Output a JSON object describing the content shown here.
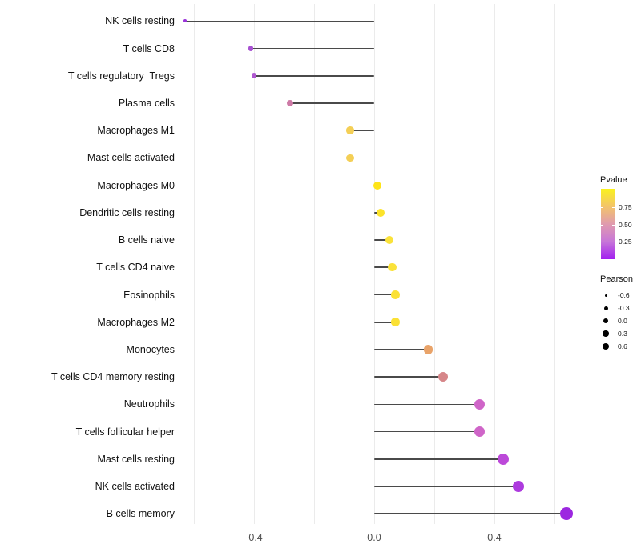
{
  "chart_data": {
    "type": "lollipop",
    "title": "",
    "xlabel": "",
    "ylabel": "",
    "x_axis": {
      "range": [
        -0.65,
        0.66
      ],
      "grid_values": [
        -0.6,
        -0.4,
        -0.2,
        0.0,
        0.2,
        0.4,
        0.6
      ],
      "ticks": [
        {
          "label": "-0.4",
          "value": -0.4
        },
        {
          "label": "0.0",
          "value": 0.0
        },
        {
          "label": "0.4",
          "value": 0.4
        }
      ]
    },
    "rows": [
      {
        "label": "NK cells resting",
        "pearson": -0.63,
        "dot_color": "#9a33da",
        "radius": 2.0
      },
      {
        "label": "T cells CD8",
        "pearson": -0.41,
        "dot_color": "#a750d2",
        "radius": 3.2
      },
      {
        "label": "T cells regulatory  Tregs",
        "pearson": -0.4,
        "dot_color": "#af58d0",
        "radius": 3.3
      },
      {
        "label": "Plasma cells",
        "pearson": -0.28,
        "dot_color": "#cd7aa6",
        "radius": 4.1
      },
      {
        "label": "Macrophages M1",
        "pearson": -0.08,
        "dot_color": "#f4cf56",
        "radius": 4.7
      },
      {
        "label": "Mast cells activated",
        "pearson": -0.08,
        "dot_color": "#f4cf56",
        "radius": 4.7
      },
      {
        "label": "Macrophages M0",
        "pearson": 0.01,
        "dot_color": "#fee418",
        "radius": 5.0
      },
      {
        "label": "Dendritic cells resting",
        "pearson": 0.02,
        "dot_color": "#fce32a",
        "radius": 5.0
      },
      {
        "label": "B cells naive",
        "pearson": 0.05,
        "dot_color": "#fae23a",
        "radius": 5.2
      },
      {
        "label": "T cells CD4 naive",
        "pearson": 0.06,
        "dot_color": "#fae23a",
        "radius": 5.2
      },
      {
        "label": "Eosinophils",
        "pearson": 0.07,
        "dot_color": "#fbe135",
        "radius": 5.3
      },
      {
        "label": "Macrophages M2",
        "pearson": 0.07,
        "dot_color": "#fbe135",
        "radius": 5.3
      },
      {
        "label": "Monocytes",
        "pearson": 0.18,
        "dot_color": "#e9a369",
        "radius": 5.8
      },
      {
        "label": "T cells CD4 memory resting",
        "pearson": 0.23,
        "dot_color": "#d68689",
        "radius": 6.0
      },
      {
        "label": "Neutrophils",
        "pearson": 0.35,
        "dot_color": "#cf65c8",
        "radius": 6.6
      },
      {
        "label": "T cells follicular helper",
        "pearson": 0.35,
        "dot_color": "#cf65c8",
        "radius": 6.6
      },
      {
        "label": "Mast cells resting",
        "pearson": 0.43,
        "dot_color": "#bc49d9",
        "radius": 7.0
      },
      {
        "label": "NK cells activated",
        "pearson": 0.48,
        "dot_color": "#ad3ade",
        "radius": 7.3
      },
      {
        "label": "B cells memory",
        "pearson": 0.64,
        "dot_color": "#9c27e0",
        "radius": 8.2
      }
    ],
    "legends": {
      "pvalue": {
        "title": "Pvalue",
        "tick_labels": [
          "0.75",
          "0.50",
          "0.25"
        ],
        "gradient_top_to_bottom": [
          "#faf21d",
          "#f3c46a",
          "#e09bae",
          "#c776d8",
          "#a21ff0"
        ]
      },
      "pearson": {
        "title": "Pearson",
        "entries": [
          {
            "label": "-0.6",
            "radius": 1.5
          },
          {
            "label": "-0.3",
            "radius": 2.5
          },
          {
            "label": "0.0",
            "radius": 3.3
          },
          {
            "label": "0.3",
            "radius": 3.7
          },
          {
            "label": "0.6",
            "radius": 4.3
          }
        ]
      }
    },
    "stem_color": "#4a4a4a",
    "grid_color": "#ebebeb"
  }
}
